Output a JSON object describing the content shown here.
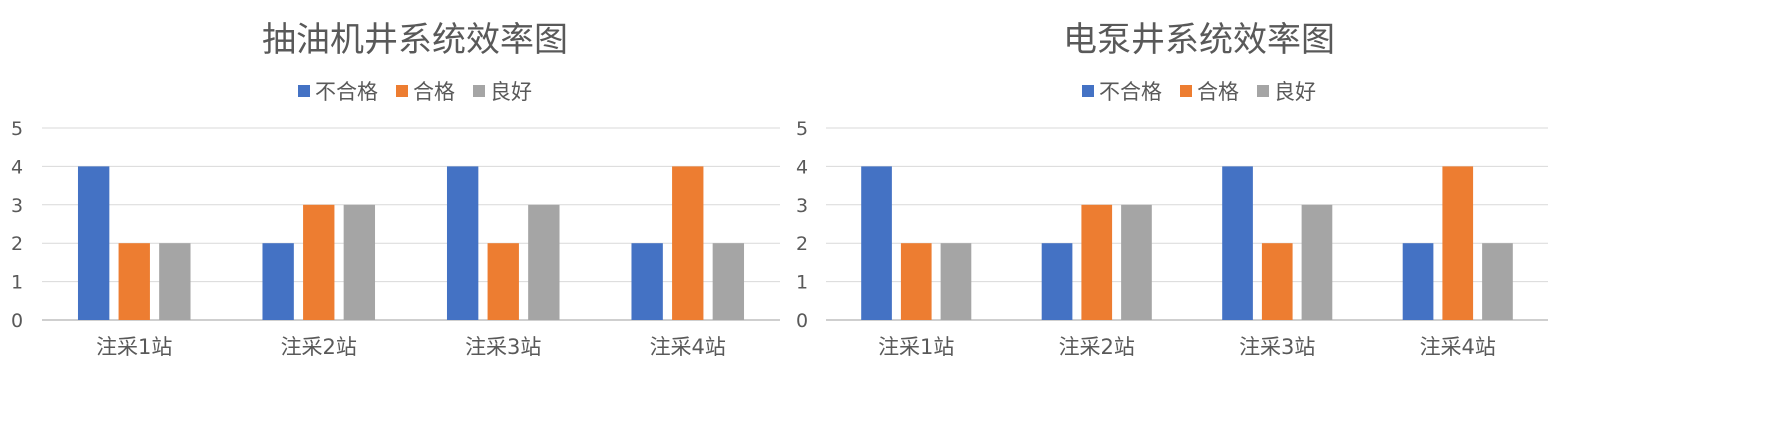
{
  "colors": {
    "gridline": "#d9d9d9",
    "axis": "#bfbfbf",
    "text": "#595959"
  },
  "chart_data": [
    {
      "type": "bar",
      "title": "抽油机井系统效率图",
      "categories": [
        "注采1站",
        "注采2站",
        "注采3站",
        "注采4站"
      ],
      "series": [
        {
          "name": "不合格",
          "color": "#4472c4",
          "values": [
            4,
            2,
            4,
            2
          ]
        },
        {
          "name": "合格",
          "color": "#ed7d31",
          "values": [
            2,
            3,
            2,
            4
          ]
        },
        {
          "name": "良好",
          "color": "#a5a5a5",
          "values": [
            2,
            3,
            3,
            2
          ]
        }
      ],
      "ylim": [
        0,
        5
      ],
      "yticks": [
        "0",
        "1",
        "2",
        "3",
        "4",
        "5"
      ],
      "grid": true,
      "legend": "top"
    },
    {
      "type": "bar",
      "title": "电泵井系统效率图",
      "categories": [
        "注采1站",
        "注采2站",
        "注采3站",
        "注采4站"
      ],
      "series": [
        {
          "name": "不合格",
          "color": "#4472c4",
          "values": [
            4,
            2,
            4,
            2
          ]
        },
        {
          "name": "合格",
          "color": "#ed7d31",
          "values": [
            2,
            3,
            2,
            4
          ]
        },
        {
          "name": "良好",
          "color": "#a5a5a5",
          "values": [
            2,
            3,
            3,
            2
          ]
        }
      ],
      "ylim": [
        0,
        5
      ],
      "yticks": [
        "0",
        "1",
        "2",
        "3",
        "4",
        "5"
      ],
      "grid": true,
      "legend": "top"
    }
  ]
}
